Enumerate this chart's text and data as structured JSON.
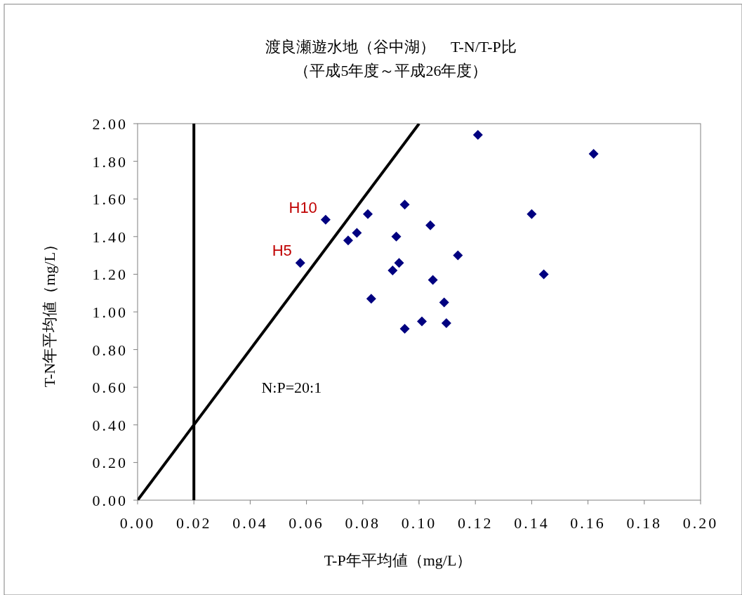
{
  "chart_data": {
    "type": "scatter",
    "title": "渡良瀬遊水地（谷中湖）　T-N/T-P比",
    "subtitle": "（平成5年度～平成26年度）",
    "xlabel": "T-P年平均値（mg/L）",
    "ylabel": "T-N年平均値（mg/L）",
    "xlim": [
      0,
      0.2
    ],
    "ylim": [
      0,
      2
    ],
    "xticks": [
      {
        "value": 0,
        "label": "0.00"
      },
      {
        "value": 0.02,
        "label": "0.02"
      },
      {
        "value": 0.04,
        "label": "0.04"
      },
      {
        "value": 0.06,
        "label": "0.06"
      },
      {
        "value": 0.08,
        "label": "0.08"
      },
      {
        "value": 0.1,
        "label": "0.10"
      },
      {
        "value": 0.12,
        "label": "0.12"
      },
      {
        "value": 0.14,
        "label": "0.14"
      },
      {
        "value": 0.16,
        "label": "0.16"
      },
      {
        "value": 0.18,
        "label": "0.18"
      },
      {
        "value": 0.2,
        "label": "0.20"
      }
    ],
    "yticks": [
      {
        "value": 0,
        "label": "0.00"
      },
      {
        "value": 0.2,
        "label": "0.20"
      },
      {
        "value": 0.4,
        "label": "0.40"
      },
      {
        "value": 0.6,
        "label": "0.60"
      },
      {
        "value": 0.8,
        "label": "0.80"
      },
      {
        "value": 1,
        "label": "1.00"
      },
      {
        "value": 1.2,
        "label": "1.20"
      },
      {
        "value": 1.4,
        "label": "1.40"
      },
      {
        "value": 1.6,
        "label": "1.60"
      },
      {
        "value": 1.8,
        "label": "1.80"
      },
      {
        "value": 2,
        "label": "2.00"
      }
    ],
    "grid": false,
    "series": [
      {
        "marker": "diamond",
        "color": "#000080",
        "x": [
          0.0578,
          0.0668,
          0.0748,
          0.0779,
          0.0818,
          0.083,
          0.0949,
          0.0919,
          0.0929,
          0.0906,
          0.104,
          0.1138,
          0.1049,
          0.1089,
          0.101,
          0.1097,
          0.0949,
          0.1209,
          0.162,
          0.14,
          0.1443
        ],
        "values": [
          1.26,
          1.49,
          1.38,
          1.42,
          1.52,
          1.07,
          1.57,
          1.4,
          1.26,
          1.22,
          1.46,
          1.3,
          1.17,
          1.05,
          0.95,
          0.94,
          0.91,
          1.94,
          1.84,
          1.52,
          1.2
        ]
      },
      {
        "type": "line",
        "marker": "none",
        "color": "#000000",
        "line_style": "solid",
        "x": [
          0,
          0.1
        ],
        "values": [
          0,
          2
        ]
      }
    ],
    "ref_lines": [
      {
        "axis": "x",
        "value": 0.02,
        "color": "#000000"
      }
    ],
    "annotations": [
      {
        "text": "H5",
        "x": 0.0578,
        "y": 1.26
      },
      {
        "text": "H10",
        "x": 0.0668,
        "y": 1.49
      },
      "N:P=20:1"
    ]
  }
}
